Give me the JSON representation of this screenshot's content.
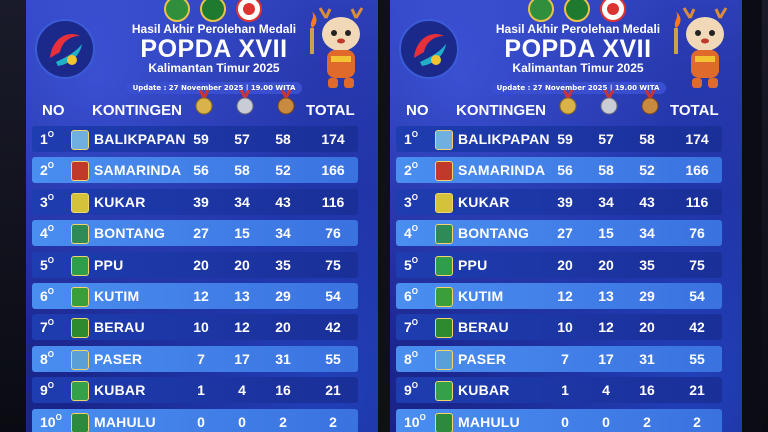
{
  "header": {
    "subtitle": "Hasil Akhir Perolehan Medali",
    "title": "POPDA XVII",
    "location": "Kalimantan Timur 2025",
    "update": "Update : 27 November 2025 | 19.00 WITA"
  },
  "columns": {
    "no": "NO",
    "team": "KONTINGEN",
    "total": "TOTAL"
  },
  "medal_colors": {
    "gold": "#d9b24a",
    "silver": "#c9ccd6",
    "bronze": "#c88a3e"
  },
  "rows": [
    {
      "rank": "1",
      "ord": "O",
      "name": "BALIKPAPAN",
      "gold": 59,
      "silver": 57,
      "bronze": 58,
      "total": 174,
      "crest": "#6fb0e0"
    },
    {
      "rank": "2",
      "ord": "O",
      "name": "SAMARINDA",
      "gold": 56,
      "silver": 58,
      "bronze": 52,
      "total": 166,
      "crest": "#c0392b"
    },
    {
      "rank": "3",
      "ord": "O",
      "name": "KUKAR",
      "gold": 39,
      "silver": 34,
      "bronze": 43,
      "total": 116,
      "crest": "#d4c23a"
    },
    {
      "rank": "4",
      "ord": "O",
      "name": "BONTANG",
      "gold": 27,
      "silver": 15,
      "bronze": 34,
      "total": 76,
      "crest": "#2e8b57"
    },
    {
      "rank": "5",
      "ord": "O",
      "name": "PPU",
      "gold": 20,
      "silver": 20,
      "bronze": 35,
      "total": 75,
      "crest": "#2f9e4a"
    },
    {
      "rank": "6",
      "ord": "O",
      "name": "KUTIM",
      "gold": 12,
      "silver": 13,
      "bronze": 29,
      "total": 54,
      "crest": "#3a9e3a"
    },
    {
      "rank": "7",
      "ord": "O",
      "name": "BERAU",
      "gold": 10,
      "silver": 12,
      "bronze": 20,
      "total": 42,
      "crest": "#2e8a2e"
    },
    {
      "rank": "8",
      "ord": "O",
      "name": "PASER",
      "gold": 7,
      "silver": 17,
      "bronze": 31,
      "total": 55,
      "crest": "#5aa0d8"
    },
    {
      "rank": "9",
      "ord": "O",
      "name": "KUBAR",
      "gold": 1,
      "silver": 4,
      "bronze": 16,
      "total": 21,
      "crest": "#35a04a"
    },
    {
      "rank": "10",
      "ord": "O",
      "name": "MAHULU",
      "gold": 0,
      "silver": 0,
      "bronze": 2,
      "total": 2,
      "crest": "#2c8a3c"
    }
  ],
  "icons": {
    "emblems": [
      "provincial-emblem-icon",
      "koni-emblem-icon",
      "event-emblem-icon"
    ],
    "logo": "popda-logo-icon",
    "mascot": "deer-mascot-icon",
    "medals": [
      "gold-medal-icon",
      "silver-medal-icon",
      "bronze-medal-icon"
    ]
  }
}
